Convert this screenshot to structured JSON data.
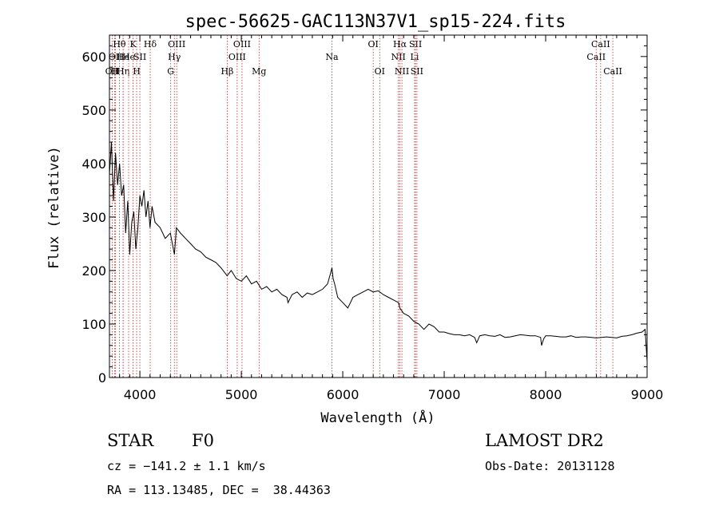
{
  "chart_data": {
    "type": "line",
    "title": "spec-56625-GAC113N37V1_sp15-224.fits",
    "xlabel": "Wavelength (Å)",
    "ylabel": "Flux (relative)",
    "xlim": [
      3700,
      9000
    ],
    "ylim": [
      0,
      640
    ],
    "xticks": [
      4000,
      5000,
      6000,
      7000,
      8000,
      9000
    ],
    "yticks": [
      0,
      100,
      200,
      300,
      400,
      500,
      600
    ],
    "grid": false,
    "series": [
      {
        "x": [
          3700,
          3720,
          3740,
          3760,
          3780,
          3800,
          3820,
          3840,
          3860,
          3880,
          3900,
          3920,
          3940,
          3960,
          3980,
          4000,
          4020,
          4040,
          4060,
          4080,
          4100,
          4120,
          4150,
          4200,
          4250,
          4300,
          4340,
          4360,
          4400,
          4450,
          4500,
          4550,
          4600,
          4650,
          4700,
          4750,
          4800,
          4860,
          4900,
          4950,
          5000,
          5050,
          5100,
          5150,
          5200,
          5250,
          5300,
          5350,
          5400,
          5450,
          5460,
          5500,
          5550,
          5600,
          5650,
          5700,
          5750,
          5800,
          5850,
          5880,
          5893,
          5905,
          5920,
          5950,
          6000,
          6050,
          6100,
          6150,
          6200,
          6250,
          6300,
          6350,
          6400,
          6450,
          6500,
          6550,
          6563,
          6600,
          6650,
          6700,
          6750,
          6800,
          6850,
          6900,
          6950,
          7000,
          7050,
          7100,
          7150,
          7200,
          7250,
          7300,
          7320,
          7350,
          7400,
          7450,
          7500,
          7550,
          7600,
          7650,
          7700,
          7750,
          7800,
          7850,
          7900,
          7950,
          7960,
          7980,
          8000,
          8050,
          8100,
          8150,
          8200,
          8250,
          8300,
          8350,
          8400,
          8450,
          8500,
          8550,
          8600,
          8650,
          8700,
          8750,
          8800,
          8850,
          8900,
          8950,
          8980,
          9000
        ],
        "y": [
          380,
          440,
          330,
          420,
          360,
          400,
          340,
          360,
          270,
          330,
          230,
          290,
          310,
          240,
          280,
          340,
          320,
          350,
          300,
          330,
          280,
          320,
          290,
          280,
          260,
          270,
          230,
          280,
          270,
          260,
          250,
          240,
          235,
          225,
          220,
          215,
          205,
          190,
          200,
          185,
          180,
          190,
          175,
          180,
          165,
          170,
          160,
          165,
          155,
          150,
          140,
          155,
          160,
          150,
          158,
          155,
          160,
          165,
          175,
          195,
          205,
          185,
          175,
          150,
          140,
          130,
          150,
          155,
          160,
          165,
          160,
          162,
          155,
          150,
          145,
          140,
          130,
          120,
          115,
          105,
          100,
          90,
          100,
          95,
          85,
          85,
          82,
          80,
          80,
          78,
          80,
          75,
          65,
          78,
          80,
          78,
          77,
          80,
          75,
          76,
          78,
          80,
          79,
          78,
          78,
          75,
          60,
          72,
          78,
          78,
          77,
          76,
          76,
          78,
          75,
          76,
          76,
          75,
          74,
          75,
          76,
          75,
          74,
          77,
          78,
          80,
          83,
          85,
          90,
          30
        ]
      }
    ],
    "lines": [
      {
        "wl": 3727,
        "row": 2,
        "label": "OII"
      },
      {
        "wl": 3750,
        "row": 2,
        "label": "H"
      },
      {
        "wl": 3760,
        "row": 1,
        "label": "OII"
      },
      {
        "wl": 3798,
        "row": 0,
        "label": "Hθ"
      },
      {
        "wl": 3835,
        "row": 1,
        "label": "He"
      },
      {
        "wl": 3835,
        "row": 2,
        "label": "Hη"
      },
      {
        "wl": 3889,
        "row": 1,
        "label": "He"
      },
      {
        "wl": 3933,
        "row": 0,
        "label": "K"
      },
      {
        "wl": 3968,
        "row": 2,
        "label": "H"
      },
      {
        "wl": 4000,
        "row": 1,
        "label": "SII"
      },
      {
        "wl": 4102,
        "row": 0,
        "label": "Hδ"
      },
      {
        "wl": 4304,
        "row": 2,
        "label": "G"
      },
      {
        "wl": 4340,
        "row": 1,
        "label": "Hγ"
      },
      {
        "wl": 4363,
        "row": 0,
        "label": "OIII"
      },
      {
        "wl": 4861,
        "row": 2,
        "label": "Hβ"
      },
      {
        "wl": 4959,
        "row": 1,
        "label": "OIII"
      },
      {
        "wl": 5007,
        "row": 0,
        "label": "OIII"
      },
      {
        "wl": 5175,
        "row": 2,
        "label": "Mg"
      },
      {
        "wl": 5893,
        "row": 1,
        "label": "Na"
      },
      {
        "wl": 6300,
        "row": 0,
        "label": "OI"
      },
      {
        "wl": 6364,
        "row": 2,
        "label": "OI"
      },
      {
        "wl": 6548,
        "row": 1,
        "label": "NII"
      },
      {
        "wl": 6563,
        "row": 0,
        "label": "Hα"
      },
      {
        "wl": 6583,
        "row": 2,
        "label": "NII"
      },
      {
        "wl": 6708,
        "row": 1,
        "label": "Li"
      },
      {
        "wl": 6717,
        "row": 0,
        "label": "SII"
      },
      {
        "wl": 6731,
        "row": 2,
        "label": "SII"
      },
      {
        "wl": 8498,
        "row": 1,
        "label": "CaII"
      },
      {
        "wl": 8542,
        "row": 0,
        "label": "CaII"
      },
      {
        "wl": 8662,
        "row": 2,
        "label": "CaII"
      }
    ]
  },
  "info": {
    "class": "STAR",
    "subclass": "F0",
    "survey": "LAMOST DR2",
    "cz": "cz = −141.2 ± 1.1 km/s",
    "obs_date": "Obs-Date: 20131128",
    "radec": "RA = 113.13485, DEC =  38.44363"
  }
}
